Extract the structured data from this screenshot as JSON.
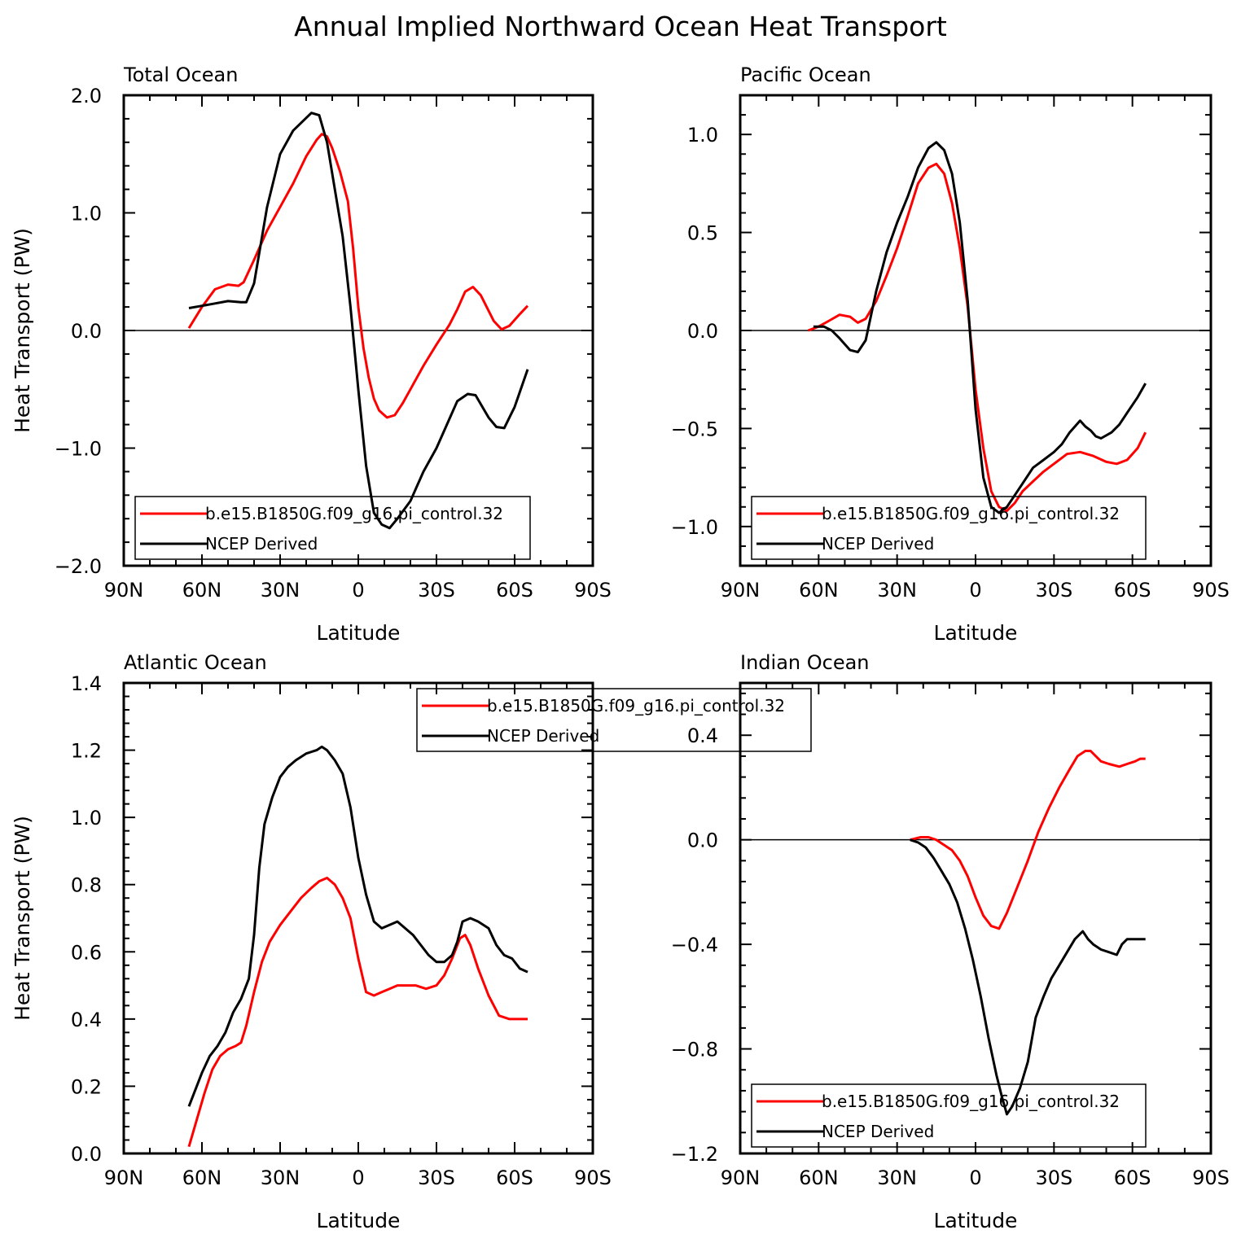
{
  "title": "Annual Implied Northward Ocean Heat Transport",
  "colors": {
    "model": "#ff0000",
    "ncep": "#000000",
    "axis": "#000000"
  },
  "x_ticks": [
    "90N",
    "60N",
    "30N",
    "0",
    "30S",
    "60S",
    "90S"
  ],
  "chart_data": [
    {
      "type": "line",
      "title": "Total Ocean",
      "xlabel": "Latitude",
      "ylabel": "Heat Transport (PW)",
      "xlim": [
        90,
        -90
      ],
      "ylim": [
        -2.0,
        2.0
      ],
      "y_ticks": [
        "−2.0",
        "−1.0",
        "0.0",
        "1.0",
        "2.0"
      ],
      "y_tick_values": [
        -2.0,
        -1.0,
        0.0,
        1.0,
        2.0
      ],
      "zero_line": true,
      "legend": {
        "position": "bottom-center",
        "entries": [
          "b.e15.B1850G.f09_g16.pi_control.32",
          "NCEP Derived"
        ]
      },
      "series": [
        {
          "name": "b.e15.B1850G.f09_g16.pi_control.32",
          "color": "#ff0000",
          "x": [
            65,
            60,
            55,
            50,
            46,
            44,
            40,
            35,
            30,
            25,
            20,
            16,
            14,
            12,
            10,
            7,
            4,
            2,
            0,
            -2,
            -4,
            -6,
            -8,
            -11,
            -14,
            -17,
            -20,
            -25,
            -30,
            -35,
            -38,
            -41,
            -44,
            -47,
            -52,
            -55,
            -58,
            -62,
            -65
          ],
          "y": [
            0.02,
            0.2,
            0.35,
            0.39,
            0.38,
            0.41,
            0.6,
            0.85,
            1.05,
            1.25,
            1.48,
            1.62,
            1.67,
            1.65,
            1.55,
            1.35,
            1.1,
            0.7,
            0.2,
            -0.15,
            -0.4,
            -0.58,
            -0.68,
            -0.74,
            -0.72,
            -0.62,
            -0.5,
            -0.3,
            -0.12,
            0.05,
            0.18,
            0.33,
            0.37,
            0.3,
            0.08,
            0.01,
            0.04,
            0.14,
            0.21
          ]
        },
        {
          "name": "NCEP Derived",
          "color": "#000000",
          "x": [
            65,
            60,
            55,
            50,
            45,
            43,
            40,
            35,
            30,
            25,
            18,
            15,
            12,
            9,
            6,
            3,
            0,
            -3,
            -6,
            -9,
            -12,
            -15,
            -20,
            -25,
            -30,
            -34,
            -38,
            -42,
            -45,
            -50,
            -53,
            -56,
            -60,
            -65
          ],
          "y": [
            0.19,
            0.21,
            0.23,
            0.25,
            0.24,
            0.24,
            0.4,
            1.05,
            1.5,
            1.7,
            1.85,
            1.83,
            1.6,
            1.2,
            0.8,
            0.2,
            -0.5,
            -1.15,
            -1.55,
            -1.65,
            -1.68,
            -1.6,
            -1.45,
            -1.2,
            -1.0,
            -0.8,
            -0.6,
            -0.54,
            -0.55,
            -0.74,
            -0.82,
            -0.83,
            -0.65,
            -0.33
          ]
        }
      ]
    },
    {
      "type": "line",
      "title": "Pacific Ocean",
      "xlabel": "Latitude",
      "ylabel": "",
      "xlim": [
        90,
        -90
      ],
      "ylim": [
        -1.2,
        1.2
      ],
      "y_ticks": [
        "−1.0",
        "−0.5",
        "0.0",
        "0.5",
        "1.0"
      ],
      "y_tick_values": [
        -1.0,
        -0.5,
        0.0,
        0.5,
        1.0
      ],
      "zero_line": true,
      "legend": {
        "position": "bottom-center",
        "entries": [
          "b.e15.B1850G.f09_g16.pi_control.32",
          "NCEP Derived"
        ]
      },
      "series": [
        {
          "name": "b.e15.B1850G.f09_g16.pi_control.32",
          "color": "#ff0000",
          "x": [
            64,
            60,
            56,
            52,
            48,
            45,
            42,
            38,
            34,
            30,
            26,
            22,
            18,
            15,
            12,
            9,
            6,
            3,
            0,
            -3,
            -6,
            -9,
            -12,
            -15,
            -18,
            -22,
            -26,
            -30,
            -35,
            -40,
            -45,
            -50,
            -54,
            -58,
            -62,
            -65
          ],
          "y": [
            0.0,
            0.02,
            0.05,
            0.08,
            0.07,
            0.04,
            0.06,
            0.15,
            0.28,
            0.42,
            0.58,
            0.75,
            0.83,
            0.85,
            0.8,
            0.65,
            0.42,
            0.12,
            -0.3,
            -0.6,
            -0.82,
            -0.9,
            -0.92,
            -0.88,
            -0.82,
            -0.77,
            -0.72,
            -0.68,
            -0.63,
            -0.62,
            -0.64,
            -0.67,
            -0.68,
            -0.66,
            -0.6,
            -0.52
          ]
        },
        {
          "name": "NCEP Derived",
          "color": "#000000",
          "x": [
            62,
            58,
            55,
            52,
            48,
            45,
            42,
            38,
            34,
            30,
            26,
            22,
            18,
            15,
            12,
            9,
            6,
            3,
            0,
            -3,
            -6,
            -9,
            -12,
            -15,
            -18,
            -22,
            -26,
            -30,
            -33,
            -36,
            -40,
            -42,
            -44,
            -46,
            -48,
            -52,
            -55,
            -58,
            -62,
            -65
          ],
          "y": [
            0.02,
            0.02,
            0.0,
            -0.04,
            -0.1,
            -0.11,
            -0.05,
            0.2,
            0.4,
            0.55,
            0.68,
            0.83,
            0.93,
            0.96,
            0.92,
            0.8,
            0.55,
            0.15,
            -0.4,
            -0.75,
            -0.9,
            -0.93,
            -0.9,
            -0.84,
            -0.78,
            -0.7,
            -0.66,
            -0.62,
            -0.58,
            -0.52,
            -0.46,
            -0.49,
            -0.51,
            -0.54,
            -0.55,
            -0.52,
            -0.48,
            -0.42,
            -0.34,
            -0.27
          ]
        }
      ]
    },
    {
      "type": "line",
      "title": "Atlantic Ocean",
      "xlabel": "Latitude",
      "ylabel": "Heat Transport (PW)",
      "xlim": [
        90,
        -90
      ],
      "ylim": [
        0.0,
        1.4
      ],
      "y_ticks": [
        "0.0",
        "0.2",
        "0.4",
        "0.6",
        "0.8",
        "1.0",
        "1.2",
        "1.4"
      ],
      "y_tick_values": [
        0.0,
        0.2,
        0.4,
        0.6,
        0.8,
        1.0,
        1.2,
        1.4
      ],
      "zero_line": false,
      "legend": {
        "position": "top-right",
        "entries": [
          "b.e15.B1850G.f09_g16.pi_control.32",
          "NCEP Derived"
        ]
      },
      "series": [
        {
          "name": "b.e15.B1850G.f09_g16.pi_control.32",
          "color": "#ff0000",
          "x": [
            65,
            62,
            59,
            56,
            53,
            50,
            47,
            45,
            43,
            40,
            37,
            34,
            30,
            26,
            22,
            18,
            15,
            12,
            9,
            6,
            3,
            0,
            -3,
            -6,
            -9,
            -12,
            -15,
            -18,
            -22,
            -26,
            -30,
            -33,
            -36,
            -39,
            -41,
            -43,
            -46,
            -50,
            -54,
            -58,
            -62,
            -65
          ],
          "y": [
            0.02,
            0.1,
            0.18,
            0.25,
            0.29,
            0.31,
            0.32,
            0.33,
            0.38,
            0.48,
            0.57,
            0.63,
            0.68,
            0.72,
            0.76,
            0.79,
            0.81,
            0.82,
            0.8,
            0.76,
            0.7,
            0.58,
            0.48,
            0.47,
            0.48,
            0.49,
            0.5,
            0.5,
            0.5,
            0.49,
            0.5,
            0.53,
            0.58,
            0.64,
            0.65,
            0.62,
            0.55,
            0.47,
            0.41,
            0.4,
            0.4,
            0.4
          ]
        },
        {
          "name": "NCEP Derived",
          "color": "#000000",
          "x": [
            65,
            63,
            60,
            57,
            54,
            51,
            48,
            45,
            42,
            40,
            38,
            36,
            33,
            30,
            27,
            24,
            20,
            16,
            14,
            12,
            9,
            6,
            3,
            0,
            -3,
            -6,
            -9,
            -12,
            -15,
            -18,
            -21,
            -24,
            -27,
            -30,
            -33,
            -36,
            -38,
            -40,
            -43,
            -46,
            -50,
            -53,
            -56,
            -59,
            -62,
            -65
          ],
          "y": [
            0.14,
            0.18,
            0.24,
            0.29,
            0.32,
            0.36,
            0.42,
            0.46,
            0.52,
            0.65,
            0.85,
            0.98,
            1.06,
            1.12,
            1.15,
            1.17,
            1.19,
            1.2,
            1.21,
            1.2,
            1.17,
            1.13,
            1.03,
            0.88,
            0.77,
            0.69,
            0.67,
            0.68,
            0.69,
            0.67,
            0.65,
            0.62,
            0.59,
            0.57,
            0.57,
            0.59,
            0.63,
            0.69,
            0.7,
            0.69,
            0.67,
            0.62,
            0.59,
            0.58,
            0.55,
            0.54
          ]
        }
      ]
    },
    {
      "type": "line",
      "title": "Indian Ocean",
      "xlabel": "Latitude",
      "ylabel": "",
      "xlim": [
        90,
        -90
      ],
      "ylim": [
        -1.2,
        0.6
      ],
      "y_ticks": [
        "−1.2",
        "−0.8",
        "−0.4",
        "0.0",
        "0.4"
      ],
      "y_tick_values": [
        -1.2,
        -0.8,
        -0.4,
        0.0,
        0.4
      ],
      "zero_line": true,
      "legend": {
        "position": "bottom-center",
        "entries": [
          "b.e15.B1850G.f09_g16.pi_control.32",
          "NCEP Derived"
        ]
      },
      "series": [
        {
          "name": "b.e15.B1850G.f09_g16.pi_control.32",
          "color": "#ff0000",
          "x": [
            25,
            21,
            18,
            15,
            12,
            9,
            6,
            3,
            0,
            -3,
            -6,
            -9,
            -12,
            -16,
            -20,
            -24,
            -28,
            -32,
            -36,
            -39,
            -42,
            -44,
            -46,
            -48,
            -51,
            -55,
            -58,
            -61,
            -63,
            -65
          ],
          "y": [
            0.0,
            0.01,
            0.01,
            0.0,
            -0.02,
            -0.04,
            -0.08,
            -0.14,
            -0.22,
            -0.29,
            -0.33,
            -0.34,
            -0.28,
            -0.18,
            -0.08,
            0.03,
            0.12,
            0.2,
            0.27,
            0.32,
            0.34,
            0.34,
            0.32,
            0.3,
            0.29,
            0.28,
            0.29,
            0.3,
            0.31,
            0.31
          ]
        },
        {
          "name": "NCEP Derived",
          "color": "#000000",
          "x": [
            25,
            22,
            19,
            16,
            13,
            10,
            7,
            4,
            1,
            -2,
            -5,
            -8,
            -10,
            -12,
            -14,
            -17,
            -20,
            -23,
            -26,
            -29,
            -32,
            -35,
            -38,
            -41,
            -43,
            -45,
            -48,
            -51,
            -54,
            -56,
            -58,
            -62,
            -65
          ],
          "y": [
            0.0,
            -0.01,
            -0.03,
            -0.07,
            -0.12,
            -0.17,
            -0.24,
            -0.34,
            -0.46,
            -0.6,
            -0.76,
            -0.9,
            -0.98,
            -1.05,
            -1.02,
            -0.95,
            -0.85,
            -0.68,
            -0.6,
            -0.53,
            -0.48,
            -0.43,
            -0.38,
            -0.35,
            -0.38,
            -0.4,
            -0.42,
            -0.43,
            -0.44,
            -0.4,
            -0.38,
            -0.38,
            -0.38
          ]
        }
      ]
    }
  ]
}
